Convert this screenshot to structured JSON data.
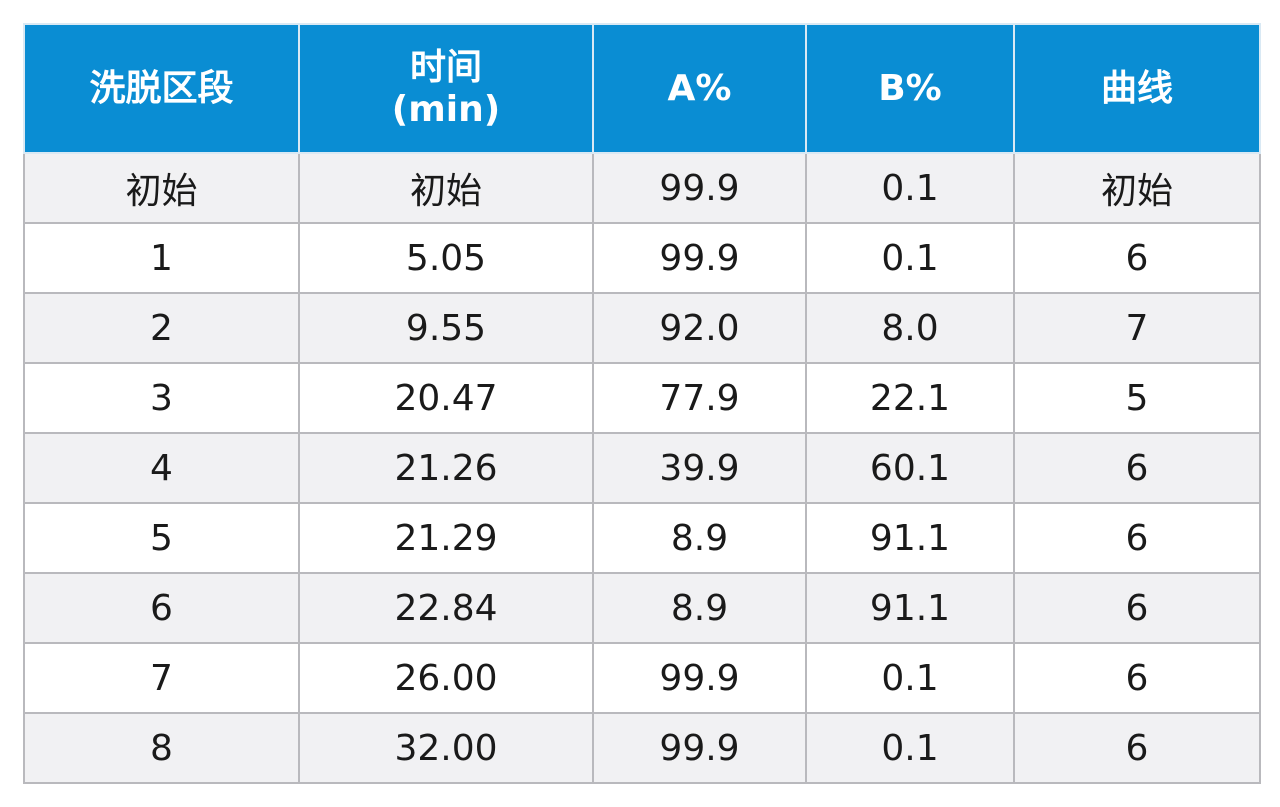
{
  "table": {
    "headers": {
      "segment": "洗脱区段",
      "time_line1": "时间",
      "time_line2": "(min)",
      "a_percent": "A%",
      "b_percent": "B%",
      "curve": "曲线"
    },
    "rows": [
      {
        "segment": "初始",
        "time": "初始",
        "a": "99.9",
        "b": "0.1",
        "curve": "初始"
      },
      {
        "segment": "1",
        "time": "5.05",
        "a": "99.9",
        "b": "0.1",
        "curve": "6"
      },
      {
        "segment": "2",
        "time": "9.55",
        "a": "92.0",
        "b": "8.0",
        "curve": "7"
      },
      {
        "segment": "3",
        "time": "20.47",
        "a": "77.9",
        "b": "22.1",
        "curve": "5"
      },
      {
        "segment": "4",
        "time": "21.26",
        "a": "39.9",
        "b": "60.1",
        "curve": "6"
      },
      {
        "segment": "5",
        "time": "21.29",
        "a": "8.9",
        "b": "91.1",
        "curve": "6"
      },
      {
        "segment": "6",
        "time": "22.84",
        "a": "8.9",
        "b": "91.1",
        "curve": "6"
      },
      {
        "segment": "7",
        "time": "26.00",
        "a": "99.9",
        "b": "0.1",
        "curve": "6"
      },
      {
        "segment": "8",
        "time": "32.00",
        "a": "99.9",
        "b": "0.1",
        "curve": "6"
      }
    ]
  },
  "colors": {
    "header_bg": "#0a8dd3",
    "header_text": "#ffffff",
    "row_alt_bg": "#f1f1f3",
    "row_bg": "#ffffff",
    "border": "#b9b9bd"
  }
}
